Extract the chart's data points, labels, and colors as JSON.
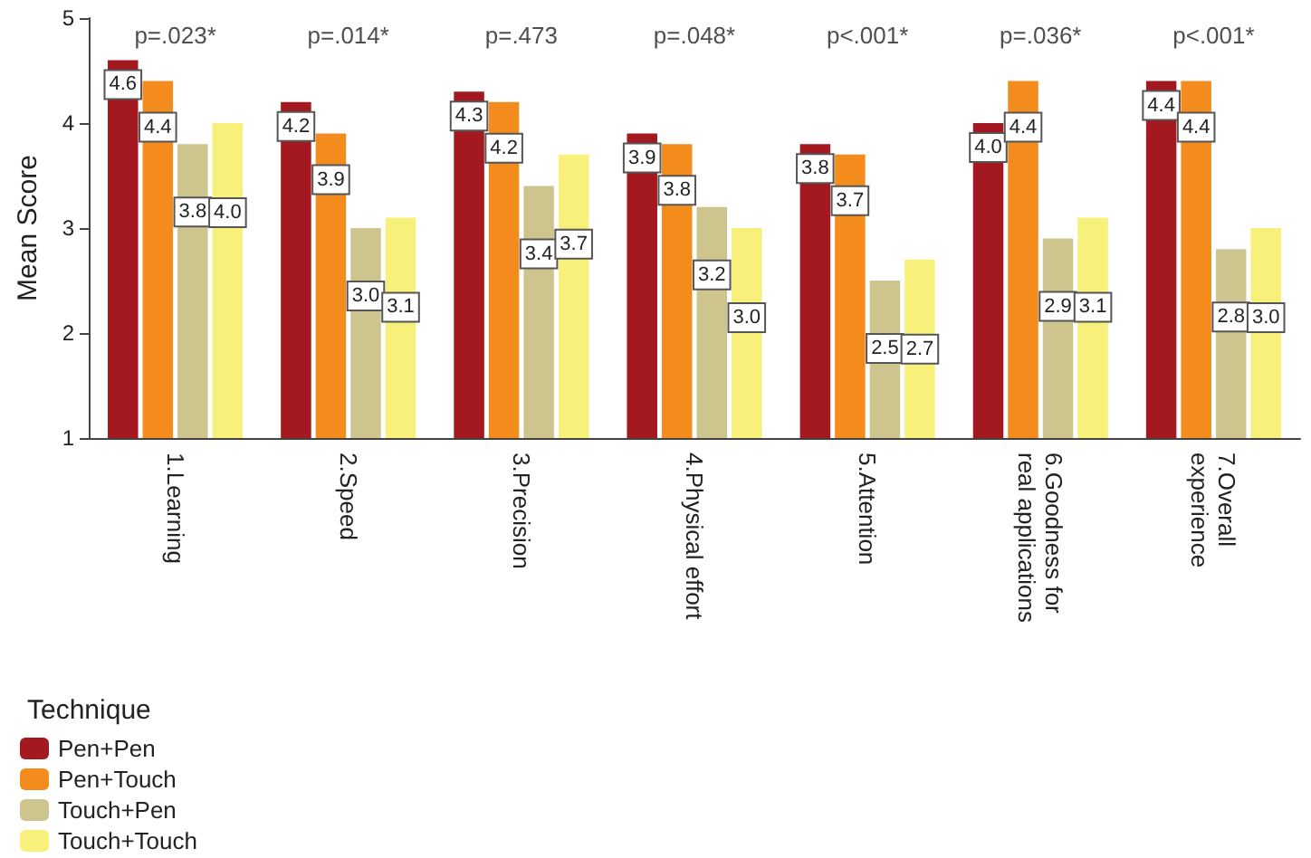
{
  "chart_data": {
    "type": "bar",
    "ylabel": "Mean Score",
    "legend_title": "Technique",
    "legend": "bottom left",
    "categories": [
      "1.Learning",
      "2.Speed",
      "3.Precision",
      "4.Physical effort",
      "5.Attention",
      "6.Goodness for real applications",
      "7.Overall experience"
    ],
    "series": [
      {
        "name": "Pen+Pen",
        "color": "#a3191f",
        "values": [
          4.6,
          4.2,
          4.3,
          3.9,
          3.8,
          4.0,
          4.4
        ],
        "value_labels": [
          "4.6",
          "4.2",
          "4.3",
          "3.9",
          "3.8",
          "4.0",
          "4.4"
        ]
      },
      {
        "name": "Pen+Touch",
        "color": "#f38b1d",
        "values": [
          4.4,
          3.9,
          4.2,
          3.8,
          3.7,
          4.4,
          4.4
        ],
        "value_labels": [
          "4.4",
          "3.9",
          "4.2",
          "3.8",
          "3.7",
          "4.4",
          "4.4"
        ]
      },
      {
        "name": "Touch+Pen",
        "color": "#cec58e",
        "values": [
          3.8,
          3.0,
          3.4,
          3.2,
          2.5,
          2.9,
          2.8
        ],
        "value_labels": [
          "3.8",
          "3.0",
          "3.4",
          "3.2",
          "2.5",
          "2.9",
          "2.8"
        ]
      },
      {
        "name": "Touch+Touch",
        "color": "#f7f17b",
        "values": [
          4.0,
          3.1,
          3.7,
          3.0,
          2.7,
          3.1,
          3.0
        ],
        "value_labels": [
          "4.0",
          "3.1",
          "3.7",
          "3.0",
          "2.7",
          "3.1",
          "3.0"
        ]
      }
    ],
    "ylim": [
      1,
      5
    ],
    "yticks": [
      1,
      2,
      3,
      4,
      5
    ],
    "grid": false,
    "annotations": [
      "p=.023*",
      "p=.014*",
      "p=.473",
      "p=.048*",
      "p<.001*",
      "p=.036*",
      "p<.001*"
    ]
  }
}
